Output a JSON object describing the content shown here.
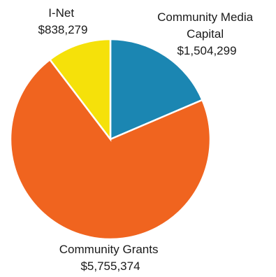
{
  "chart_data": {
    "type": "pie",
    "categories": [
      "Community Media Capital",
      "Community Grants",
      "I-Net"
    ],
    "values": [
      1504299,
      5755374,
      838279
    ],
    "value_labels": [
      "$1,504,299",
      "$5,755,374",
      "$838,279"
    ],
    "label_lines": [
      [
        "Community Media",
        "Capital",
        "$1,504,299"
      ],
      [
        "Community Grants",
        "$5,755,374"
      ],
      [
        "I-Net",
        "$838,279"
      ]
    ],
    "colors": [
      "#1b86b2",
      "#f0641f",
      "#f5e10a"
    ],
    "start": "12 o'clock",
    "direction": "clockwise",
    "legend": "none (direct labels)"
  }
}
